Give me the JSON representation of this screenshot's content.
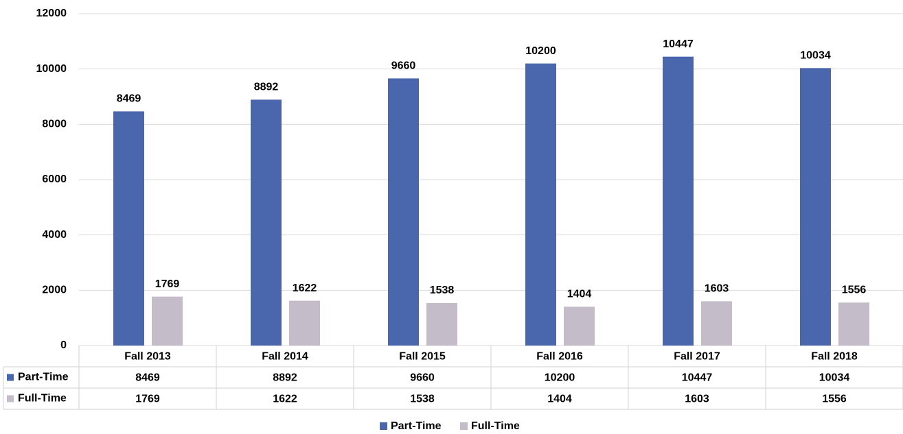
{
  "chart_data": {
    "type": "bar",
    "categories": [
      "Fall 2013",
      "Fall 2014",
      "Fall 2015",
      "Fall 2016",
      "Fall 2017",
      "Fall 2018"
    ],
    "series": [
      {
        "name": "Part-Time",
        "color": "#4a66ad",
        "values": [
          8469,
          8892,
          9660,
          10200,
          10447,
          10034
        ]
      },
      {
        "name": "Full-Time",
        "color": "#c4bdc9",
        "values": [
          1769,
          1622,
          1538,
          1404,
          1603,
          1556
        ]
      }
    ],
    "ylim": [
      0,
      12000
    ],
    "yticks": [
      0,
      2000,
      4000,
      6000,
      8000,
      10000,
      12000
    ],
    "grid": true,
    "data_table": true,
    "legend": "bottom"
  }
}
